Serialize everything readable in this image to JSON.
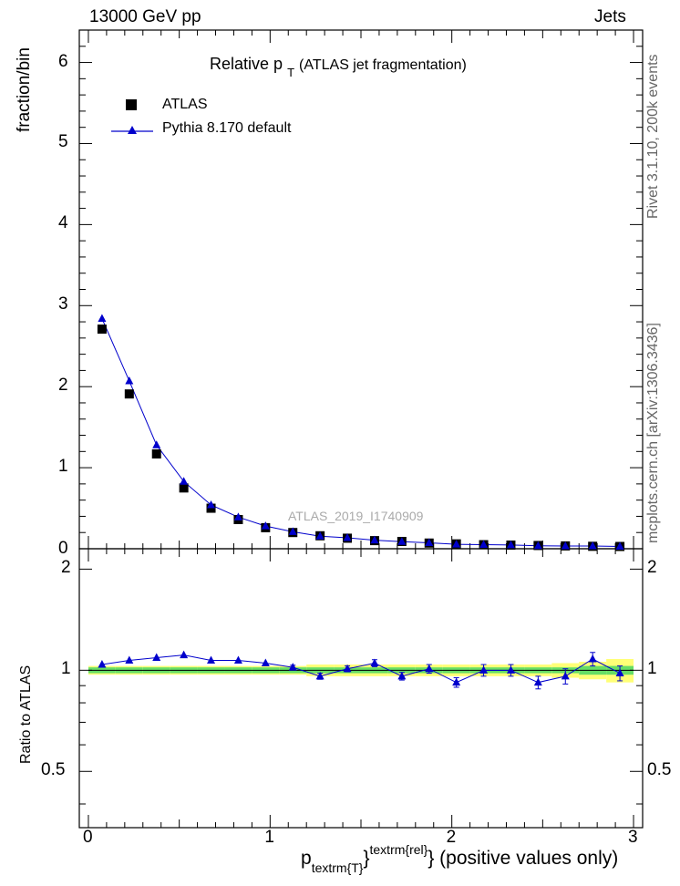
{
  "header": {
    "left": "13000 GeV pp",
    "right": "Jets"
  },
  "side_labels": {
    "rivet": "Rivet 3.1.10,  200k events",
    "mcplots": "mcplots.cern.ch [arXiv:1306.3436]"
  },
  "main_plot": {
    "title_main": "Relative p",
    "title_sub": "T",
    "title_rest": "(ATLAS jet fragmentation)",
    "ylabel": "fraction/bin",
    "watermark": "ATLAS_2019_I1740909",
    "yticks": [
      "0",
      "1",
      "2",
      "3",
      "4",
      "5",
      "6"
    ]
  },
  "ratio_plot": {
    "ylabel": "Ratio to ATLAS",
    "yticks": [
      "0.5",
      "1",
      "2"
    ]
  },
  "x_axis": {
    "ticks": [
      "0",
      "1",
      "2",
      "3"
    ],
    "label_p": "p",
    "label_sub": "textrm{T}",
    "label_brace": "}",
    "label_sup": "textrm{rel}",
    "label_rest": "} (positive values only)"
  },
  "legend": {
    "data_label": "ATLAS",
    "mc_label": "Pythia 8.170 default"
  },
  "colors": {
    "data": "#000000",
    "mc": "#0000cc",
    "band_inner": "#66dd66",
    "band_outer": "#ffff77"
  },
  "chart_data": {
    "type": "scatter",
    "xlim": [
      -0.05,
      3.05
    ],
    "ylim_main": [
      0,
      6.4
    ],
    "ylim_ratio": [
      0.34,
      2.3
    ],
    "ratio_scale": "log",
    "x": [
      0.075,
      0.225,
      0.375,
      0.525,
      0.675,
      0.825,
      0.975,
      1.125,
      1.275,
      1.425,
      1.575,
      1.725,
      1.875,
      2.025,
      2.175,
      2.325,
      2.475,
      2.625,
      2.775,
      2.925
    ],
    "series": [
      {
        "name": "ATLAS",
        "values": [
          2.71,
          1.91,
          1.17,
          0.75,
          0.5,
          0.36,
          0.26,
          0.2,
          0.16,
          0.13,
          0.1,
          0.09,
          0.07,
          0.06,
          0.05,
          0.045,
          0.04,
          0.035,
          0.03,
          0.028
        ],
        "band_inner": [
          0.02,
          0.02,
          0.02,
          0.02,
          0.02,
          0.02,
          0.02,
          0.02,
          0.02,
          0.02,
          0.02,
          0.02,
          0.02,
          0.02,
          0.02,
          0.02,
          0.02,
          0.02,
          0.03,
          0.03
        ],
        "band_outer": [
          0.03,
          0.03,
          0.03,
          0.03,
          0.03,
          0.03,
          0.03,
          0.03,
          0.04,
          0.04,
          0.04,
          0.04,
          0.04,
          0.04,
          0.04,
          0.04,
          0.04,
          0.05,
          0.06,
          0.08
        ]
      },
      {
        "name": "Pythia 8.170 default",
        "values": [
          2.84,
          2.07,
          1.28,
          0.83,
          0.54,
          0.39,
          0.28,
          0.21,
          0.155,
          0.135,
          0.105,
          0.087,
          0.073,
          0.055,
          0.051,
          0.046,
          0.037,
          0.034,
          0.034,
          0.028
        ],
        "ratio": [
          1.04,
          1.07,
          1.09,
          1.11,
          1.07,
          1.07,
          1.05,
          1.02,
          0.96,
          1.01,
          1.05,
          0.96,
          1.01,
          0.92,
          1.0,
          1.0,
          0.92,
          0.96,
          1.08,
          0.98
        ],
        "ratio_err": [
          0.01,
          0.01,
          0.01,
          0.01,
          0.01,
          0.01,
          0.01,
          0.015,
          0.02,
          0.02,
          0.025,
          0.025,
          0.03,
          0.03,
          0.04,
          0.04,
          0.04,
          0.05,
          0.05,
          0.05
        ]
      }
    ]
  }
}
